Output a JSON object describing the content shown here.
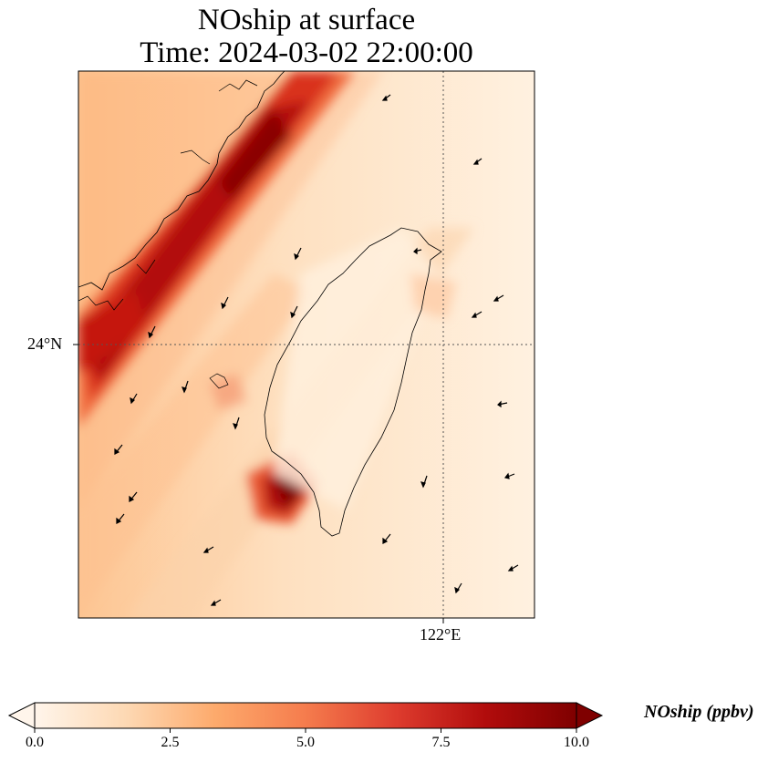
{
  "title": {
    "line1": "NOship at surface",
    "line2": "Time: 2024-03-02 22:00:00"
  },
  "map": {
    "lat_tick_label": "24°N",
    "lon_tick_label": "122°E",
    "features": [
      "coastline-china",
      "coastline-taiwan",
      "gridline-24N",
      "gridline-122E",
      "wind-vectors"
    ],
    "hotspots": [
      {
        "name": "taiwan-strait-shipping-lane",
        "value_ppbv": 10.0
      },
      {
        "name": "southwest-taiwan-port",
        "value_ppbv": 10.0
      }
    ]
  },
  "colorbar": {
    "label": "NOship (ppbv)",
    "ticks": [
      "0.0",
      "2.5",
      "5.0",
      "7.5",
      "10.0"
    ],
    "min": 0.0,
    "max": 10.0,
    "extend": "both",
    "colors": [
      "#fff5eb",
      "#fdd9b4",
      "#fdaa6c",
      "#f57c4d",
      "#de3c2e",
      "#b10c0c",
      "#7f0000"
    ]
  }
}
